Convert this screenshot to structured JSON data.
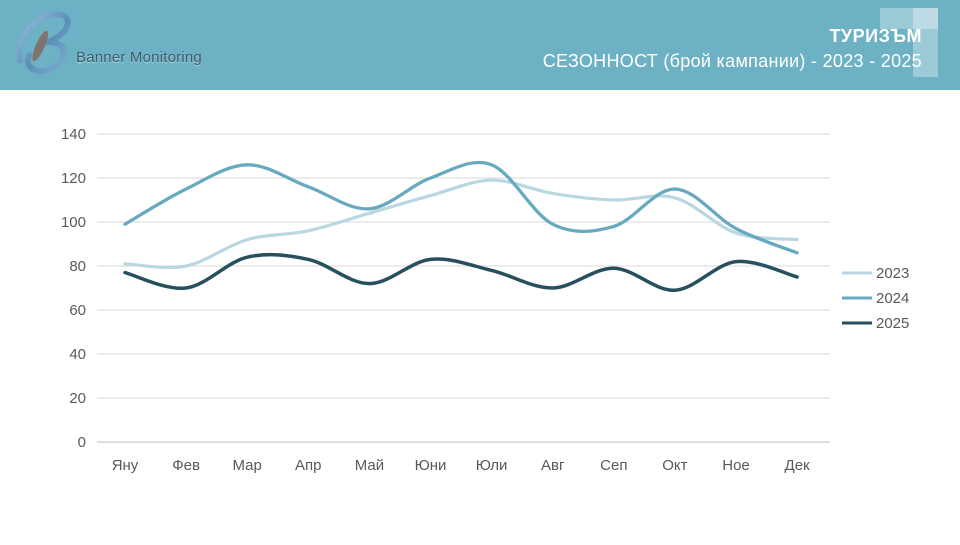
{
  "header": {
    "brand": "Banner Monitoring",
    "title": "ТУРИЗЪМ",
    "subtitle": "СЕЗОННОСТ (брой кампании) - 2023 - 2025",
    "bg_color": "#6CB1C4"
  },
  "chart_data": {
    "type": "line",
    "title": "СЕЗОННОСТ (брой кампании) - 2023 - 2025",
    "categories": [
      "Яну",
      "Фев",
      "Мар",
      "Апр",
      "Май",
      "Юни",
      "Юли",
      "Авг",
      "Сеп",
      "Окт",
      "Ное",
      "Дек"
    ],
    "series": [
      {
        "name": "2023",
        "color": "#B9D7E0",
        "values": [
          81,
          80,
          92,
          96,
          104,
          112,
          119,
          113,
          110,
          111,
          95,
          92
        ]
      },
      {
        "name": "2024",
        "color": "#67A9C0",
        "values": [
          99,
          115,
          126,
          116,
          106,
          120,
          126,
          99,
          98,
          115,
          97,
          86
        ]
      },
      {
        "name": "2025",
        "color": "#26505E",
        "values": [
          77,
          70,
          84,
          83,
          72,
          83,
          78,
          70,
          79,
          69,
          82,
          75
        ]
      }
    ],
    "xlabel": "",
    "ylabel": "",
    "ylim": [
      0,
      140
    ],
    "y_ticks": [
      0,
      20,
      40,
      60,
      80,
      100,
      120,
      140
    ],
    "grid": true,
    "legend_position": "right",
    "grid_color": "#D9D9D9",
    "axis_color": "#BFBFBF",
    "tick_text_color": "#595959"
  }
}
